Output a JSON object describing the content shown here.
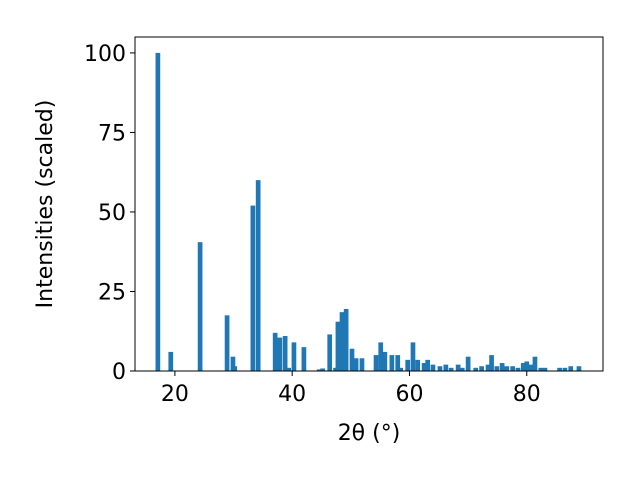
{
  "chart_data": {
    "type": "bar",
    "x_label": "2θ (°)",
    "y_label": "Intensities (scaled)",
    "color": "#1f77b4",
    "x": [
      17.1,
      19.3,
      24.3,
      28.9,
      29.9,
      30.2,
      33.3,
      34.2,
      37.1,
      37.9,
      38.8,
      39.4,
      40.3,
      42.0,
      44.6,
      45.2,
      46.4,
      47.4,
      47.8,
      48.5,
      49.2,
      50.2,
      50.9,
      51.9,
      54.3,
      55.1,
      55.8,
      57.0,
      58.0,
      58.5,
      59.7,
      60.6,
      61.4,
      62.5,
      63.1,
      64.0,
      65.2,
      66.2,
      67.1,
      68.3,
      69.0,
      70.0,
      71.3,
      72.3,
      73.4,
      74.0,
      74.9,
      75.8,
      76.6,
      77.6,
      78.5,
      79.4,
      80.0,
      80.7,
      81.4,
      82.4,
      83.1,
      85.6,
      86.5,
      87.5,
      88.9
    ],
    "values": [
      100,
      6,
      40.5,
      17.5,
      4.5,
      1.5,
      52,
      60,
      12,
      10.5,
      11,
      1,
      9,
      7.5,
      0.5,
      0.8,
      11.5,
      1,
      15.5,
      18.5,
      19.5,
      7,
      4,
      4,
      5,
      9,
      6,
      5,
      5,
      1,
      3.5,
      9,
      3.5,
      2.5,
      3.5,
      2,
      1.5,
      2,
      1,
      2,
      1,
      4.5,
      1,
      1.5,
      2,
      5,
      1.5,
      2.5,
      1.5,
      1.5,
      1,
      2.5,
      3,
      2,
      4.5,
      1,
      1,
      1,
      1,
      1.5,
      1.5
    ],
    "xlim": [
      13.2,
      93.0
    ],
    "ylim": [
      0,
      105
    ],
    "xticks": [
      20,
      40,
      60,
      80
    ],
    "yticks": [
      0,
      25,
      50,
      75,
      100
    ]
  }
}
